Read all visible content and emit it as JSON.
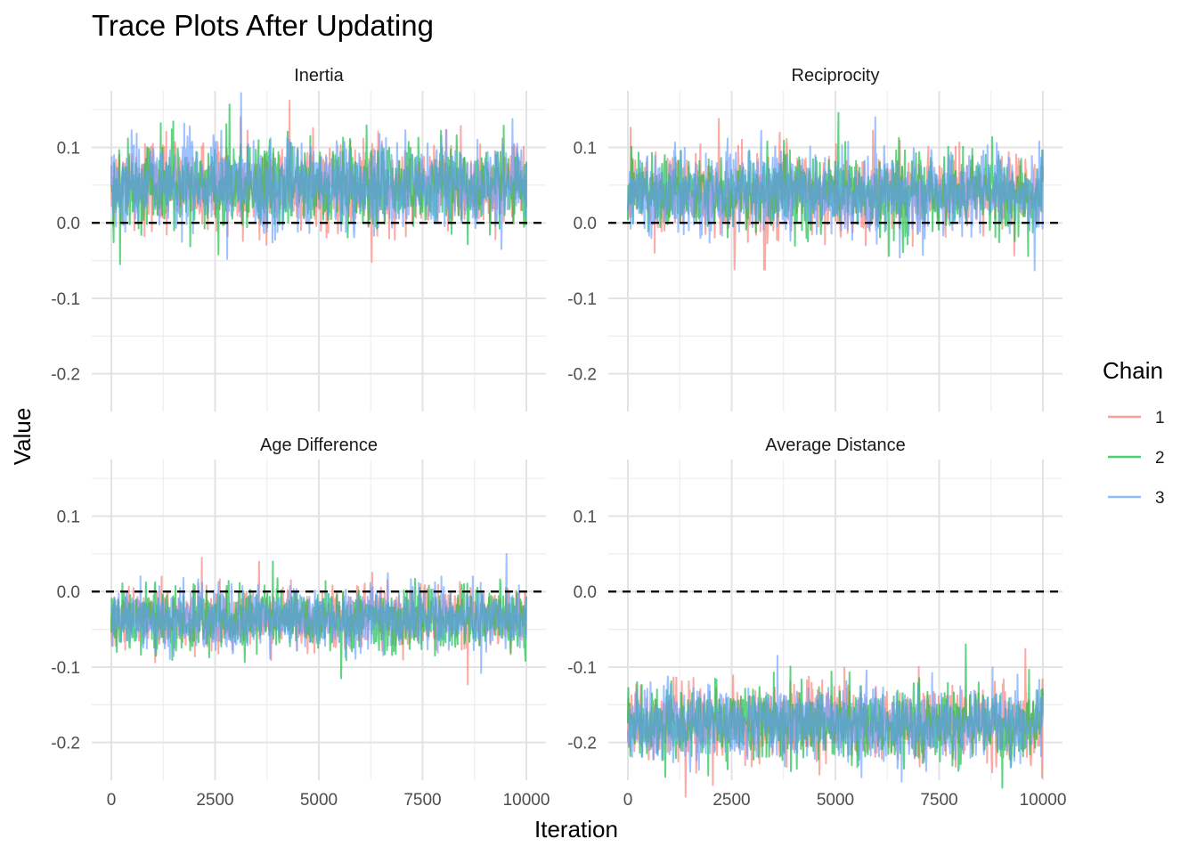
{
  "chart_data": {
    "type": "line",
    "title": "Trace Plots After Updating",
    "xlabel": "Iteration",
    "ylabel": "Value",
    "xlim": [
      0,
      10000
    ],
    "ylim": [
      -0.25,
      0.175
    ],
    "x_ticks": [
      0,
      2500,
      5000,
      7500,
      10000
    ],
    "x_tick_labels": [
      "0",
      "2500",
      "5000",
      "7500",
      "10000"
    ],
    "y_ticks": [
      -0.2,
      -0.1,
      0.0,
      0.1
    ],
    "y_tick_labels": [
      "-0.2",
      "-0.1",
      "0.0",
      "0.1"
    ],
    "reference_line": {
      "y": 0.0,
      "style": "dashed",
      "color": "#000000"
    },
    "grid": true,
    "legend": {
      "title": "Chain",
      "placement": "right",
      "entries": [
        {
          "name": "1",
          "color": "#F8766D"
        },
        {
          "name": "2",
          "color": "#00BA38"
        },
        {
          "name": "3",
          "color": "#619CFF"
        }
      ]
    },
    "panels": [
      {
        "name": "Inertia",
        "series": [
          {
            "name": "1",
            "mean": 0.05,
            "sd": 0.028,
            "min": -0.052,
            "max": 0.162
          },
          {
            "name": "2",
            "mean": 0.05,
            "sd": 0.028,
            "min": -0.055,
            "max": 0.157
          },
          {
            "name": "3",
            "mean": 0.05,
            "sd": 0.028,
            "min": -0.048,
            "max": 0.172
          }
        ]
      },
      {
        "name": "Reciprocity",
        "series": [
          {
            "name": "1",
            "mean": 0.04,
            "sd": 0.026,
            "min": -0.062,
            "max": 0.138
          },
          {
            "name": "2",
            "mean": 0.04,
            "sd": 0.026,
            "min": -0.044,
            "max": 0.146
          },
          {
            "name": "3",
            "mean": 0.04,
            "sd": 0.026,
            "min": -0.063,
            "max": 0.14
          }
        ]
      },
      {
        "name": "Age Difference",
        "series": [
          {
            "name": "1",
            "mean": -0.035,
            "sd": 0.02,
            "min": -0.123,
            "max": 0.045
          },
          {
            "name": "2",
            "mean": -0.035,
            "sd": 0.02,
            "min": -0.115,
            "max": 0.04
          },
          {
            "name": "3",
            "mean": -0.035,
            "sd": 0.02,
            "min": -0.108,
            "max": 0.05
          }
        ]
      },
      {
        "name": "Average Distance",
        "series": [
          {
            "name": "1",
            "mean": -0.175,
            "sd": 0.024,
            "min": -0.272,
            "max": -0.076
          },
          {
            "name": "2",
            "mean": -0.175,
            "sd": 0.024,
            "min": -0.26,
            "max": -0.07
          },
          {
            "name": "3",
            "mean": -0.175,
            "sd": 0.024,
            "min": -0.252,
            "max": -0.085
          }
        ]
      }
    ]
  }
}
